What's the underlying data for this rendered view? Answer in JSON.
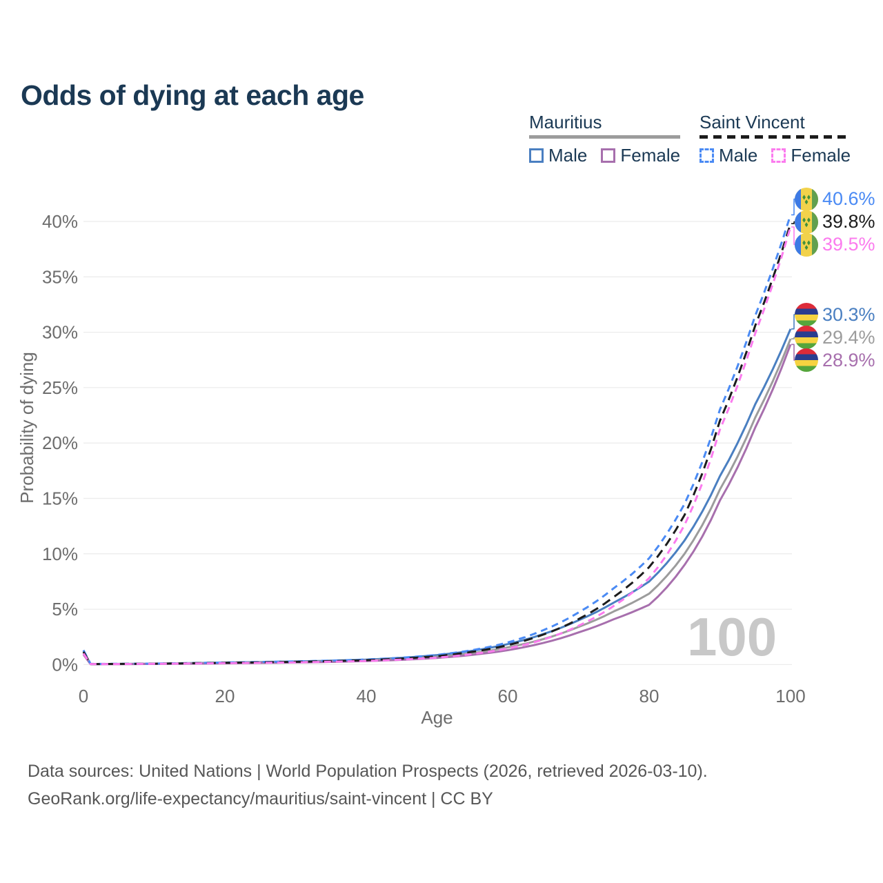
{
  "title": "Odds of dying at each age",
  "watermark": "100",
  "legend": {
    "groups": [
      {
        "name": "Mauritius",
        "line_style": "solid",
        "underline_color": "#9c9c9c",
        "items": [
          {
            "label": "Male",
            "color": "#4a7fc1",
            "swatch_style": "solid"
          },
          {
            "label": "Female",
            "color": "#a76fad",
            "swatch_style": "solid"
          }
        ]
      },
      {
        "name": "Saint Vincent",
        "line_style": "dashed",
        "underline_color": "#1c1c1c",
        "items": [
          {
            "label": "Male",
            "color": "#4a8af4",
            "swatch_style": "dashed"
          },
          {
            "label": "Female",
            "color": "#fb7bee",
            "swatch_style": "dashed"
          }
        ]
      }
    ]
  },
  "footer": {
    "line1": "Data sources: United Nations | World Population Prospects (2026, retrieved 2026-03-10).",
    "line2": "GeoRank.org/life-expectancy/mauritius/saint-vincent | CC BY"
  },
  "flags": {
    "mauritius": {
      "stripes": [
        "#dd2b39",
        "#2a3d8f",
        "#f6d341",
        "#55a53c"
      ]
    },
    "saint_vincent": {
      "blue": "#3d7ae5",
      "yellow": "#f2d24b",
      "green": "#61a04f",
      "diamond": "#43903b"
    }
  },
  "chart_data": {
    "type": "line",
    "title": "Odds of dying at each age",
    "xlabel": "Age",
    "ylabel": "Probability of dying",
    "xlim": [
      0,
      100
    ],
    "ylim": [
      0,
      43.5
    ],
    "grid": "horizontal",
    "legend_position": "top-right",
    "x_ticks": [
      0,
      20,
      40,
      60,
      80,
      100
    ],
    "y_ticks": [
      0,
      5,
      10,
      15,
      20,
      25,
      30,
      35,
      40
    ],
    "y_tick_labels": [
      "0%",
      "5%",
      "10%",
      "15%",
      "20%",
      "25%",
      "30%",
      "35%",
      "40%"
    ],
    "x": [
      0,
      1,
      5,
      10,
      15,
      20,
      25,
      30,
      35,
      40,
      45,
      50,
      55,
      60,
      65,
      70,
      75,
      80,
      85,
      90,
      95,
      100
    ],
    "series": [
      {
        "name": "Mauritius male",
        "country": "Mauritius",
        "sex": "Male",
        "flag": "mauritius",
        "color": "#4a7fc1",
        "dash": false,
        "end_label": "30.3%",
        "end_value": 30.3,
        "values": [
          1.2,
          0.05,
          0.06,
          0.08,
          0.13,
          0.18,
          0.23,
          0.28,
          0.35,
          0.45,
          0.61,
          0.86,
          1.25,
          1.85,
          2.75,
          4.0,
          5.6,
          7.5,
          11.2,
          17.0,
          23.5,
          30.3
        ]
      },
      {
        "name": "Mauritius both sexes",
        "country": "Mauritius",
        "sex": "Both",
        "flag": "mauritius",
        "color": "#9c9c9c",
        "dash": false,
        "end_label": "29.4%",
        "end_value": 29.4,
        "values": [
          1.05,
          0.05,
          0.05,
          0.07,
          0.11,
          0.15,
          0.19,
          0.23,
          0.29,
          0.38,
          0.51,
          0.71,
          1.03,
          1.55,
          2.3,
          3.4,
          4.8,
          6.4,
          10.0,
          15.8,
          22.3,
          29.4
        ]
      },
      {
        "name": "Mauritius female",
        "country": "Mauritius",
        "sex": "Female",
        "flag": "mauritius",
        "color": "#a76fad",
        "dash": false,
        "end_label": "28.9%",
        "end_value": 28.9,
        "values": [
          0.9,
          0.04,
          0.04,
          0.06,
          0.08,
          0.11,
          0.15,
          0.19,
          0.24,
          0.32,
          0.43,
          0.6,
          0.88,
          1.3,
          1.95,
          2.9,
          4.1,
          5.4,
          9.0,
          14.8,
          21.4,
          28.9
        ]
      },
      {
        "name": "Saint Vincent male",
        "country": "Saint Vincent",
        "sex": "Male",
        "flag": "saint_vincent",
        "color": "#4a8af4",
        "dash": true,
        "end_label": "40.6%",
        "end_value": 40.6,
        "values": [
          1.3,
          0.06,
          0.07,
          0.09,
          0.14,
          0.19,
          0.24,
          0.29,
          0.36,
          0.46,
          0.62,
          0.88,
          1.3,
          2.0,
          3.1,
          4.7,
          6.9,
          9.6,
          14.5,
          23.0,
          31.5,
          40.6
        ]
      },
      {
        "name": "Saint Vincent both sexes",
        "country": "Saint Vincent",
        "sex": "Both",
        "flag": "saint_vincent",
        "color": "#1c1c1c",
        "dash": true,
        "end_label": "39.8%",
        "end_value": 39.8,
        "values": [
          1.15,
          0.05,
          0.06,
          0.08,
          0.12,
          0.16,
          0.2,
          0.25,
          0.31,
          0.4,
          0.54,
          0.76,
          1.15,
          1.75,
          2.7,
          4.1,
          6.1,
          8.8,
          13.5,
          22.0,
          30.6,
          39.8
        ]
      },
      {
        "name": "Saint Vincent female",
        "country": "Saint Vincent",
        "sex": "Female",
        "flag": "saint_vincent",
        "color": "#fb7bee",
        "dash": true,
        "end_label": "39.5%",
        "end_value": 39.5,
        "values": [
          1.0,
          0.05,
          0.05,
          0.07,
          0.1,
          0.13,
          0.16,
          0.2,
          0.26,
          0.33,
          0.45,
          0.63,
          0.95,
          1.45,
          2.25,
          3.5,
          5.3,
          7.8,
          12.6,
          21.2,
          29.9,
          39.5
        ]
      }
    ]
  }
}
